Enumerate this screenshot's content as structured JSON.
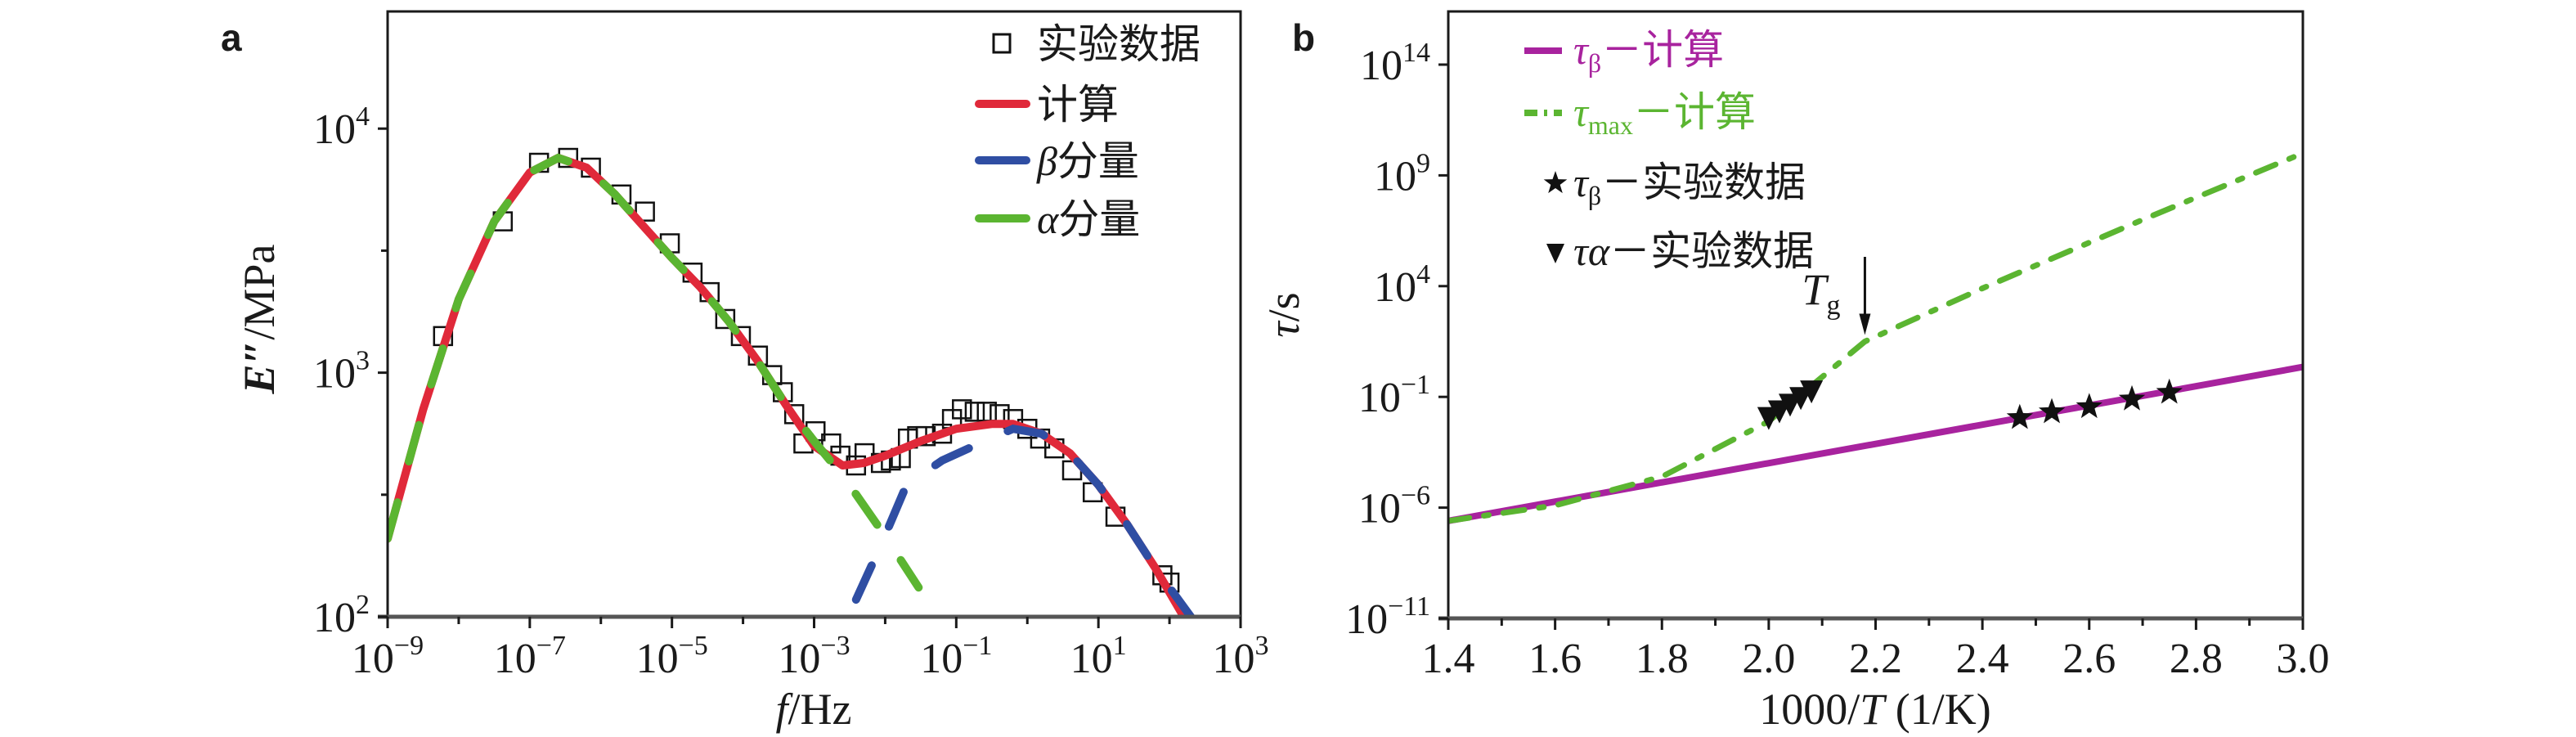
{
  "figure": {
    "panel_a_tag": "a",
    "panel_b_tag": "b"
  },
  "colors": {
    "calc": "#e0293a",
    "beta": "#2f4ea3",
    "alpha": "#5bb531",
    "tau_beta": "#a8239e",
    "tau_max": "#5bb531",
    "marker": "#111111"
  },
  "chart_data": [
    {
      "type": "line",
      "panel": "a",
      "title": "",
      "xlabel": "f/Hz",
      "ylabel": "E″/MPa",
      "xscale": "log",
      "yscale": "log",
      "xlim_log10": [
        -9,
        3
      ],
      "ylim_log10": [
        2,
        4.48
      ],
      "x_ticks": [
        {
          "base": "10",
          "exp": "−9",
          "log": -9
        },
        {
          "base": "10",
          "exp": "−7",
          "log": -7
        },
        {
          "base": "10",
          "exp": "−5",
          "log": -5
        },
        {
          "base": "10",
          "exp": "−3",
          "log": -3
        },
        {
          "base": "10",
          "exp": "−1",
          "log": -1
        },
        {
          "base": "10",
          "exp": "1",
          "log": 1
        },
        {
          "base": "10",
          "exp": "3",
          "log": 3
        }
      ],
      "y_ticks": [
        {
          "base": "10",
          "exp": "2",
          "log": 2
        },
        {
          "base": "10",
          "exp": "3",
          "log": 3
        },
        {
          "base": "10",
          "exp": "4",
          "log": 4
        }
      ],
      "legend": {
        "placement": "top-right",
        "entries": [
          {
            "label": "实验数据",
            "marker": "open-square"
          },
          {
            "label": "计算",
            "marker": "line",
            "color_key": "calc"
          },
          {
            "label_sym": "β",
            "label": "分量",
            "marker": "line",
            "color_key": "beta"
          },
          {
            "label_sym": "α",
            "label": "分量",
            "marker": "line",
            "color_key": "alpha"
          }
        ]
      },
      "series": [
        {
          "name": "实验数据",
          "kind": "scatter",
          "points_log10": [
            [
              -8.22,
              3.15
            ],
            [
              -7.38,
              3.62
            ],
            [
              -6.87,
              3.86
            ],
            [
              -6.46,
              3.88
            ],
            [
              -6.14,
              3.84
            ],
            [
              -5.71,
              3.73
            ],
            [
              -5.38,
              3.66
            ],
            [
              -5.03,
              3.53
            ],
            [
              -4.71,
              3.41
            ],
            [
              -4.47,
              3.33
            ],
            [
              -4.25,
              3.22
            ],
            [
              -4.03,
              3.15
            ],
            [
              -3.79,
              3.07
            ],
            [
              -3.59,
              2.99
            ],
            [
              -3.44,
              2.92
            ],
            [
              -3.28,
              2.83
            ],
            [
              -3.15,
              2.71
            ],
            [
              -2.98,
              2.76
            ],
            [
              -2.76,
              2.71
            ],
            [
              -2.63,
              2.66
            ],
            [
              -2.41,
              2.62
            ],
            [
              -2.29,
              2.67
            ],
            [
              -2.06,
              2.63
            ],
            [
              -1.92,
              2.64
            ],
            [
              -1.78,
              2.65
            ],
            [
              -1.68,
              2.73
            ],
            [
              -1.55,
              2.74
            ],
            [
              -1.43,
              2.74
            ],
            [
              -1.2,
              2.75
            ],
            [
              -1.06,
              2.81
            ],
            [
              -0.92,
              2.85
            ],
            [
              -0.74,
              2.84
            ],
            [
              -0.57,
              2.84
            ],
            [
              -0.39,
              2.83
            ],
            [
              -0.2,
              2.81
            ],
            [
              0.0,
              2.77
            ],
            [
              0.18,
              2.73
            ],
            [
              0.38,
              2.69
            ],
            [
              0.63,
              2.6
            ],
            [
              0.92,
              2.51
            ],
            [
              1.24,
              2.41
            ],
            [
              1.9,
              2.17
            ],
            [
              2.0,
              2.14
            ]
          ]
        },
        {
          "name": "计算",
          "kind": "line",
          "color_key": "calc",
          "points_log10": [
            [
              -9.0,
              2.32
            ],
            [
              -8.5,
              2.85
            ],
            [
              -8.0,
              3.3
            ],
            [
              -7.5,
              3.62
            ],
            [
              -7.0,
              3.82
            ],
            [
              -6.6,
              3.88
            ],
            [
              -6.2,
              3.84
            ],
            [
              -5.8,
              3.73
            ],
            [
              -5.4,
              3.6
            ],
            [
              -5.0,
              3.47
            ],
            [
              -4.6,
              3.35
            ],
            [
              -4.2,
              3.21
            ],
            [
              -3.8,
              3.05
            ],
            [
              -3.4,
              2.87
            ],
            [
              -3.0,
              2.7
            ],
            [
              -2.6,
              2.62
            ],
            [
              -2.3,
              2.63
            ],
            [
              -2.0,
              2.66
            ],
            [
              -1.5,
              2.72
            ],
            [
              -1.0,
              2.77
            ],
            [
              -0.5,
              2.79
            ],
            [
              -0.2,
              2.79
            ],
            [
              0.2,
              2.75
            ],
            [
              0.6,
              2.67
            ],
            [
              1.0,
              2.54
            ],
            [
              1.4,
              2.38
            ],
            [
              1.8,
              2.2
            ],
            [
              2.2,
              2.0
            ]
          ]
        },
        {
          "name": "α分量",
          "kind": "dashed-line",
          "color_key": "alpha",
          "points_log10": [
            [
              -9.0,
              2.32
            ],
            [
              -8.5,
              2.85
            ],
            [
              -8.0,
              3.3
            ],
            [
              -7.5,
              3.62
            ],
            [
              -7.0,
              3.82
            ],
            [
              -6.6,
              3.88
            ],
            [
              -6.2,
              3.84
            ],
            [
              -5.8,
              3.73
            ],
            [
              -5.4,
              3.6
            ],
            [
              -5.0,
              3.47
            ],
            [
              -4.6,
              3.35
            ],
            [
              -4.2,
              3.21
            ],
            [
              -3.8,
              3.05
            ],
            [
              -3.4,
              2.87
            ],
            [
              -3.0,
              2.72
            ],
            [
              -2.55,
              2.56
            ],
            [
              -2.0,
              2.33
            ],
            [
              -1.53,
              2.12
            ]
          ]
        },
        {
          "name": "β分量",
          "kind": "dashed-line",
          "color_key": "beta",
          "points_log10": [
            [
              -2.41,
              2.07
            ],
            [
              -2.05,
              2.3
            ],
            [
              -1.7,
              2.54
            ],
            [
              -1.2,
              2.64
            ],
            [
              -0.6,
              2.72
            ],
            [
              -0.2,
              2.77
            ],
            [
              0.2,
              2.75
            ],
            [
              0.6,
              2.67
            ],
            [
              1.0,
              2.54
            ],
            [
              1.4,
              2.38
            ],
            [
              1.8,
              2.2
            ],
            [
              2.3,
              2.0
            ]
          ]
        }
      ]
    },
    {
      "type": "line",
      "panel": "b",
      "title": "",
      "xlabel": "1000/T (1/K)",
      "ylabel": "τ/s",
      "xscale": "linear",
      "yscale": "log",
      "xlim": [
        1.4,
        3.0
      ],
      "ylim_log10": [
        -11,
        16.4
      ],
      "x_ticks": [
        "1.4",
        "1.6",
        "1.8",
        "2.0",
        "2.2",
        "2.4",
        "2.6",
        "2.8",
        "3.0"
      ],
      "y_ticks": [
        {
          "base": "10",
          "exp": "−11",
          "log": -11
        },
        {
          "base": "10",
          "exp": "−6",
          "log": -6
        },
        {
          "base": "10",
          "exp": "−1",
          "log": -1
        },
        {
          "base": "10",
          "exp": "4",
          "log": 4
        },
        {
          "base": "10",
          "exp": "9",
          "log": 9
        },
        {
          "base": "10",
          "exp": "14",
          "log": 14
        }
      ],
      "annotation": {
        "text": "T",
        "sub": "g",
        "x": 2.18,
        "y_log10": 1.5
      },
      "legend": {
        "placement": "top-left",
        "entries": [
          {
            "sym": "τ",
            "sub": "β",
            "label": "－计算",
            "marker": "line",
            "color_key": "tau_beta"
          },
          {
            "sym": "τ",
            "sub": "max",
            "label": "－计算",
            "marker": "dash-dot",
            "color_key": "tau_max"
          },
          {
            "sym": "τ",
            "sub": "β",
            "label": "－实验数据",
            "marker": "star"
          },
          {
            "sym": "τα",
            "sub": "",
            "label": "－实验数据",
            "marker": "down-triangle"
          }
        ]
      },
      "series": [
        {
          "name": "τβ－计算",
          "kind": "line",
          "color_key": "tau_beta",
          "points": [
            [
              1.4,
              -6.6
            ],
            [
              3.0,
              0.35
            ]
          ]
        },
        {
          "name": "τmax－计算",
          "kind": "dash-dot",
          "color_key": "tau_max",
          "points": [
            [
              1.4,
              -6.6
            ],
            [
              1.6,
              -5.9
            ],
            [
              1.8,
              -4.6
            ],
            [
              2.0,
              -2.1
            ],
            [
              2.18,
              1.5
            ],
            [
              2.4,
              3.9
            ],
            [
              2.7,
              7.0
            ],
            [
              3.0,
              10.0
            ]
          ]
        },
        {
          "name": "τβ－实验数据",
          "kind": "scatter",
          "marker": "star",
          "points": [
            [
              2.47,
              -1.94
            ],
            [
              2.53,
              -1.68
            ],
            [
              2.6,
              -1.45
            ],
            [
              2.68,
              -1.1
            ],
            [
              2.75,
              -0.8
            ]
          ]
        },
        {
          "name": "τα－实验数据",
          "kind": "scatter",
          "marker": "down-triangle",
          "points": [
            [
              2.0,
              -1.9
            ],
            [
              2.02,
              -1.6
            ],
            [
              2.04,
              -1.3
            ],
            [
              2.06,
              -1.0
            ],
            [
              2.08,
              -0.7
            ]
          ]
        }
      ]
    }
  ]
}
